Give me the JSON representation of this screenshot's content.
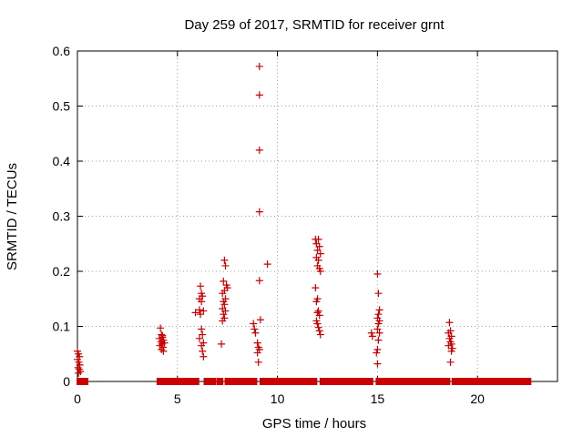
{
  "chart_data": {
    "type": "scatter",
    "title": "Day 259 of 2017, SRMTID for receiver grnt",
    "xlabel": "GPS time / hours",
    "ylabel": "SRMTID / TECUs",
    "xlim": [
      0,
      24
    ],
    "ylim": [
      0,
      0.6
    ],
    "xticks": [
      0,
      5,
      10,
      15,
      20
    ],
    "xtick_labels": [
      "0",
      "5",
      "10",
      "15",
      "20"
    ],
    "yticks": [
      0,
      0.1,
      0.2,
      0.3,
      0.4,
      0.5,
      0.6
    ],
    "ytick_labels": [
      "0",
      "0.1",
      "0.2",
      "0.3",
      "0.4",
      "0.5",
      "0.6"
    ],
    "grid": true,
    "marker": "+",
    "color": "#cc0000",
    "series": [
      {
        "name": "SRMTID",
        "baseline_value": 0,
        "baseline_segments": [
          [
            0.05,
            0.45
          ],
          [
            4.05,
            6.0
          ],
          [
            6.4,
            6.85
          ],
          [
            7.05,
            7.2
          ],
          [
            7.45,
            8.9
          ],
          [
            9.2,
            11.9
          ],
          [
            12.2,
            14.7
          ],
          [
            15.0,
            18.55
          ],
          [
            18.8,
            22.6
          ]
        ],
        "points": [
          {
            "x": 0.0,
            "y": 0.055
          },
          {
            "x": 0.05,
            "y": 0.05
          },
          {
            "x": 0.1,
            "y": 0.045
          },
          {
            "x": 0.0,
            "y": 0.04
          },
          {
            "x": 0.07,
            "y": 0.035
          },
          {
            "x": 0.12,
            "y": 0.03
          },
          {
            "x": 0.03,
            "y": 0.025
          },
          {
            "x": 0.1,
            "y": 0.022
          },
          {
            "x": 0.15,
            "y": 0.018
          },
          {
            "x": 0.05,
            "y": 0.015
          },
          {
            "x": 4.15,
            "y": 0.097
          },
          {
            "x": 4.2,
            "y": 0.085
          },
          {
            "x": 4.25,
            "y": 0.08
          },
          {
            "x": 4.1,
            "y": 0.078
          },
          {
            "x": 4.3,
            "y": 0.075
          },
          {
            "x": 4.18,
            "y": 0.072
          },
          {
            "x": 4.35,
            "y": 0.07
          },
          {
            "x": 4.22,
            "y": 0.068
          },
          {
            "x": 4.12,
            "y": 0.065
          },
          {
            "x": 4.28,
            "y": 0.062
          },
          {
            "x": 4.2,
            "y": 0.058
          },
          {
            "x": 4.3,
            "y": 0.055
          },
          {
            "x": 4.25,
            "y": 0.083
          },
          {
            "x": 5.9,
            "y": 0.125
          },
          {
            "x": 6.1,
            "y": 0.13
          },
          {
            "x": 6.15,
            "y": 0.173
          },
          {
            "x": 6.2,
            "y": 0.16
          },
          {
            "x": 6.25,
            "y": 0.155
          },
          {
            "x": 6.1,
            "y": 0.15
          },
          {
            "x": 6.2,
            "y": 0.145
          },
          {
            "x": 6.3,
            "y": 0.128
          },
          {
            "x": 6.15,
            "y": 0.122
          },
          {
            "x": 6.2,
            "y": 0.095
          },
          {
            "x": 6.25,
            "y": 0.085
          },
          {
            "x": 6.1,
            "y": 0.078
          },
          {
            "x": 6.3,
            "y": 0.07
          },
          {
            "x": 6.2,
            "y": 0.065
          },
          {
            "x": 6.25,
            "y": 0.055
          },
          {
            "x": 6.3,
            "y": 0.045
          },
          {
            "x": 7.35,
            "y": 0.22
          },
          {
            "x": 7.4,
            "y": 0.21
          },
          {
            "x": 7.3,
            "y": 0.182
          },
          {
            "x": 7.45,
            "y": 0.175
          },
          {
            "x": 7.5,
            "y": 0.17
          },
          {
            "x": 7.35,
            "y": 0.165
          },
          {
            "x": 7.25,
            "y": 0.16
          },
          {
            "x": 7.4,
            "y": 0.15
          },
          {
            "x": 7.3,
            "y": 0.145
          },
          {
            "x": 7.35,
            "y": 0.14
          },
          {
            "x": 7.25,
            "y": 0.132
          },
          {
            "x": 7.4,
            "y": 0.128
          },
          {
            "x": 7.3,
            "y": 0.122
          },
          {
            "x": 7.35,
            "y": 0.115
          },
          {
            "x": 7.25,
            "y": 0.11
          },
          {
            "x": 7.2,
            "y": 0.068
          },
          {
            "x": 8.8,
            "y": 0.105
          },
          {
            "x": 8.85,
            "y": 0.095
          },
          {
            "x": 8.9,
            "y": 0.088
          },
          {
            "x": 9.0,
            "y": 0.07
          },
          {
            "x": 9.05,
            "y": 0.062
          },
          {
            "x": 9.1,
            "y": 0.058
          },
          {
            "x": 9.0,
            "y": 0.052
          },
          {
            "x": 9.05,
            "y": 0.035
          },
          {
            "x": 9.1,
            "y": 0.572
          },
          {
            "x": 9.1,
            "y": 0.52
          },
          {
            "x": 9.1,
            "y": 0.42
          },
          {
            "x": 9.1,
            "y": 0.308
          },
          {
            "x": 9.1,
            "y": 0.183
          },
          {
            "x": 9.15,
            "y": 0.112
          },
          {
            "x": 9.5,
            "y": 0.213
          },
          {
            "x": 11.9,
            "y": 0.258
          },
          {
            "x": 12.05,
            "y": 0.258
          },
          {
            "x": 11.95,
            "y": 0.25
          },
          {
            "x": 12.1,
            "y": 0.245
          },
          {
            "x": 12.0,
            "y": 0.238
          },
          {
            "x": 12.15,
            "y": 0.232
          },
          {
            "x": 11.95,
            "y": 0.225
          },
          {
            "x": 12.05,
            "y": 0.22
          },
          {
            "x": 12.0,
            "y": 0.21
          },
          {
            "x": 12.1,
            "y": 0.205
          },
          {
            "x": 12.15,
            "y": 0.2
          },
          {
            "x": 11.9,
            "y": 0.17
          },
          {
            "x": 12.0,
            "y": 0.15
          },
          {
            "x": 11.95,
            "y": 0.145
          },
          {
            "x": 12.05,
            "y": 0.128
          },
          {
            "x": 12.0,
            "y": 0.125
          },
          {
            "x": 12.1,
            "y": 0.12
          },
          {
            "x": 11.95,
            "y": 0.11
          },
          {
            "x": 12.0,
            "y": 0.105
          },
          {
            "x": 12.05,
            "y": 0.098
          },
          {
            "x": 12.1,
            "y": 0.092
          },
          {
            "x": 12.15,
            "y": 0.085
          },
          {
            "x": 14.7,
            "y": 0.088
          },
          {
            "x": 14.75,
            "y": 0.082
          },
          {
            "x": 15.0,
            "y": 0.195
          },
          {
            "x": 15.05,
            "y": 0.16
          },
          {
            "x": 15.1,
            "y": 0.13
          },
          {
            "x": 15.05,
            "y": 0.122
          },
          {
            "x": 15.0,
            "y": 0.115
          },
          {
            "x": 15.1,
            "y": 0.11
          },
          {
            "x": 15.05,
            "y": 0.105
          },
          {
            "x": 15.0,
            "y": 0.095
          },
          {
            "x": 15.1,
            "y": 0.088
          },
          {
            "x": 15.05,
            "y": 0.075
          },
          {
            "x": 15.0,
            "y": 0.058
          },
          {
            "x": 14.95,
            "y": 0.052
          },
          {
            "x": 15.0,
            "y": 0.032
          },
          {
            "x": 18.6,
            "y": 0.107
          },
          {
            "x": 18.65,
            "y": 0.092
          },
          {
            "x": 18.55,
            "y": 0.088
          },
          {
            "x": 18.7,
            "y": 0.082
          },
          {
            "x": 18.6,
            "y": 0.078
          },
          {
            "x": 18.65,
            "y": 0.072
          },
          {
            "x": 18.7,
            "y": 0.068
          },
          {
            "x": 18.55,
            "y": 0.065
          },
          {
            "x": 18.75,
            "y": 0.06
          },
          {
            "x": 18.7,
            "y": 0.055
          },
          {
            "x": 18.65,
            "y": 0.035
          }
        ]
      }
    ]
  }
}
